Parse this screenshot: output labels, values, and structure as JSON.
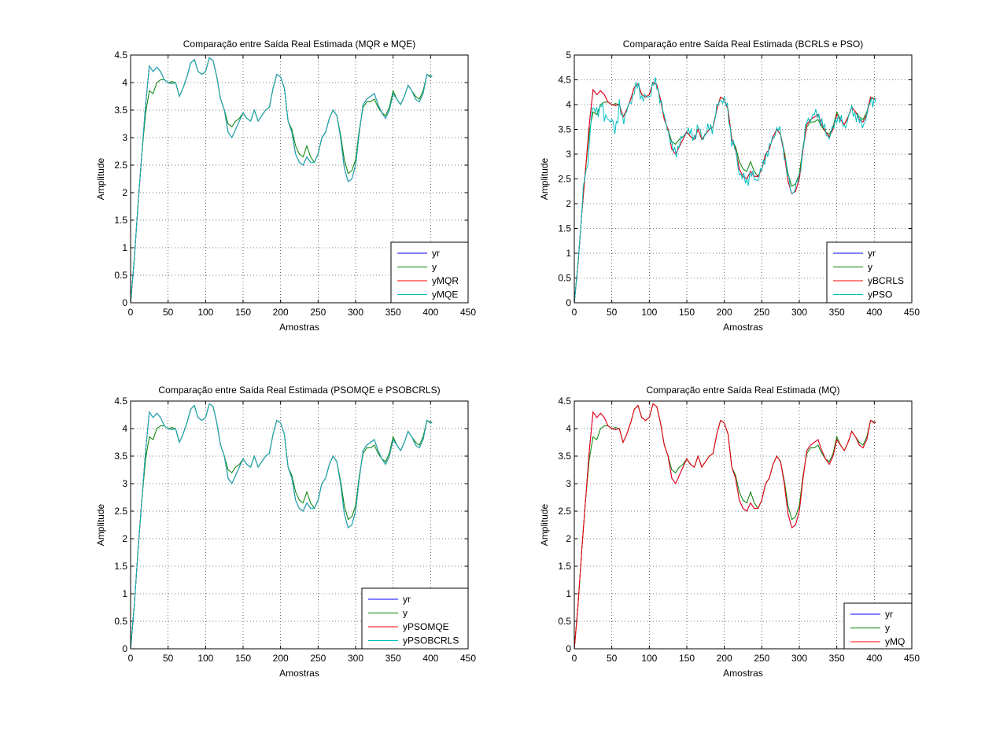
{
  "figure": {
    "background": "#ffffff"
  },
  "chart_data": [
    {
      "id": "mqr-mqe",
      "type": "line",
      "title": "Comparação entre Saída Real Estimada (MQR e MQE)",
      "xlabel": "Amostras",
      "ylabel": "Amplitude",
      "xlim": [
        0,
        450
      ],
      "ylim": [
        0,
        4.5
      ],
      "xticks": [
        "0",
        "50",
        "100",
        "150",
        "200",
        "250",
        "300",
        "350",
        "400",
        "450"
      ],
      "yticks": [
        "0",
        "0.5",
        "1",
        "1.5",
        "2",
        "2.5",
        "3",
        "3.5",
        "4",
        "4.5"
      ],
      "grid": true,
      "legend_location": "lower-right",
      "series": [
        {
          "name": "yr",
          "color": "#0000ff",
          "profile": "ref"
        },
        {
          "name": "y",
          "color": "#008000",
          "profile": "meas"
        },
        {
          "name": "yMQR",
          "color": "#ff0000",
          "profile": "ref"
        },
        {
          "name": "yMQE",
          "color": "#00bfbf",
          "profile": "ref"
        }
      ]
    },
    {
      "id": "bcrls-pso",
      "type": "line",
      "title": "Comparação entre Saída Real Estimada (BCRLS e PSO)",
      "xlabel": "Amostras",
      "ylabel": "Amplitude",
      "xlim": [
        0,
        450
      ],
      "ylim": [
        0,
        5
      ],
      "xticks": [
        "0",
        "50",
        "100",
        "150",
        "200",
        "250",
        "300",
        "350",
        "400",
        "450"
      ],
      "yticks": [
        "0",
        "0.5",
        "1",
        "1.5",
        "2",
        "2.5",
        "3",
        "3.5",
        "4",
        "4.5",
        "5"
      ],
      "grid": true,
      "legend_location": "lower-right",
      "series": [
        {
          "name": "yr",
          "color": "#0000ff",
          "profile": "ref"
        },
        {
          "name": "y",
          "color": "#008000",
          "profile": "meas"
        },
        {
          "name": "yBCRLS",
          "color": "#ff0000",
          "profile": "ref"
        },
        {
          "name": "yPSO",
          "color": "#00bfbf",
          "profile": "noisy"
        }
      ]
    },
    {
      "id": "psomqe-psobcrls",
      "type": "line",
      "title": "Comparação entre Saída Real Estimada (PSOMQE e PSOBCRLS)",
      "xlabel": "Amostras",
      "ylabel": "Amplitude",
      "xlim": [
        0,
        450
      ],
      "ylim": [
        0,
        4.5
      ],
      "xticks": [
        "0",
        "50",
        "100",
        "150",
        "200",
        "250",
        "300",
        "350",
        "400",
        "450"
      ],
      "yticks": [
        "0",
        "0.5",
        "1",
        "1.5",
        "2",
        "2.5",
        "3",
        "3.5",
        "4",
        "4.5"
      ],
      "grid": true,
      "legend_location": "lower-right",
      "series": [
        {
          "name": "yr",
          "color": "#0000ff",
          "profile": "ref"
        },
        {
          "name": "y",
          "color": "#008000",
          "profile": "meas"
        },
        {
          "name": "yPSOMQE",
          "color": "#ff0000",
          "profile": "ref"
        },
        {
          "name": "yPSOBCRLS",
          "color": "#00bfbf",
          "profile": "ref"
        }
      ]
    },
    {
      "id": "mq",
      "type": "line",
      "title": "Comparação entre Saída Real Estimada (MQ)",
      "xlabel": "Amostras",
      "ylabel": "Amplitude",
      "xlim": [
        0,
        450
      ],
      "ylim": [
        0,
        4.5
      ],
      "xticks": [
        "0",
        "50",
        "100",
        "150",
        "200",
        "250",
        "300",
        "350",
        "400",
        "450"
      ],
      "yticks": [
        "0",
        "0.5",
        "1",
        "1.5",
        "2",
        "2.5",
        "3",
        "3.5",
        "4",
        "4.5"
      ],
      "grid": true,
      "legend_location": "lower-right",
      "series": [
        {
          "name": "yr",
          "color": "#0000ff",
          "profile": "ref"
        },
        {
          "name": "y",
          "color": "#008000",
          "profile": "meas"
        },
        {
          "name": "yMQ",
          "color": "#ff0000",
          "profile": "ref"
        }
      ]
    }
  ],
  "profiles": {
    "ref": [
      [
        0,
        0
      ],
      [
        5,
        0.8
      ],
      [
        10,
        1.8
      ],
      [
        15,
        2.7
      ],
      [
        20,
        3.6
      ],
      [
        25,
        4.3
      ],
      [
        30,
        4.2
      ],
      [
        35,
        4.28
      ],
      [
        40,
        4.2
      ],
      [
        45,
        4.05
      ],
      [
        50,
        4.0
      ],
      [
        55,
        3.98
      ],
      [
        60,
        4.0
      ],
      [
        65,
        3.75
      ],
      [
        70,
        3.9
      ],
      [
        75,
        4.1
      ],
      [
        80,
        4.35
      ],
      [
        85,
        4.42
      ],
      [
        90,
        4.2
      ],
      [
        95,
        4.15
      ],
      [
        100,
        4.2
      ],
      [
        105,
        4.45
      ],
      [
        110,
        4.4
      ],
      [
        115,
        4.1
      ],
      [
        120,
        3.7
      ],
      [
        125,
        3.5
      ],
      [
        130,
        3.1
      ],
      [
        135,
        3.0
      ],
      [
        140,
        3.15
      ],
      [
        145,
        3.3
      ],
      [
        150,
        3.45
      ],
      [
        155,
        3.35
      ],
      [
        160,
        3.3
      ],
      [
        165,
        3.5
      ],
      [
        170,
        3.3
      ],
      [
        175,
        3.4
      ],
      [
        180,
        3.5
      ],
      [
        185,
        3.55
      ],
      [
        190,
        3.9
      ],
      [
        195,
        4.15
      ],
      [
        200,
        4.1
      ],
      [
        205,
        3.9
      ],
      [
        210,
        3.3
      ],
      [
        215,
        3.1
      ],
      [
        220,
        2.7
      ],
      [
        225,
        2.55
      ],
      [
        230,
        2.5
      ],
      [
        235,
        2.65
      ],
      [
        240,
        2.55
      ],
      [
        245,
        2.55
      ],
      [
        250,
        2.7
      ],
      [
        255,
        3.0
      ],
      [
        260,
        3.1
      ],
      [
        265,
        3.35
      ],
      [
        270,
        3.5
      ],
      [
        275,
        3.4
      ],
      [
        280,
        3.0
      ],
      [
        285,
        2.45
      ],
      [
        290,
        2.2
      ],
      [
        295,
        2.25
      ],
      [
        300,
        2.5
      ],
      [
        305,
        3.1
      ],
      [
        310,
        3.6
      ],
      [
        315,
        3.7
      ],
      [
        320,
        3.75
      ],
      [
        325,
        3.8
      ],
      [
        330,
        3.6
      ],
      [
        335,
        3.45
      ],
      [
        340,
        3.35
      ],
      [
        345,
        3.5
      ],
      [
        350,
        3.8
      ],
      [
        355,
        3.7
      ],
      [
        360,
        3.6
      ],
      [
        365,
        3.75
      ],
      [
        370,
        3.95
      ],
      [
        375,
        3.85
      ],
      [
        380,
        3.7
      ],
      [
        385,
        3.65
      ],
      [
        390,
        3.8
      ],
      [
        395,
        4.15
      ],
      [
        400,
        4.1
      ],
      [
        402,
        4.12
      ]
    ],
    "meas": [
      [
        0,
        0
      ],
      [
        5,
        0.8
      ],
      [
        10,
        1.8
      ],
      [
        15,
        2.7
      ],
      [
        20,
        3.45
      ],
      [
        25,
        3.85
      ],
      [
        30,
        3.8
      ],
      [
        35,
        4.0
      ],
      [
        40,
        4.05
      ],
      [
        45,
        4.05
      ],
      [
        50,
        4.0
      ],
      [
        55,
        4.02
      ],
      [
        60,
        4.0
      ],
      [
        65,
        3.75
      ],
      [
        70,
        3.9
      ],
      [
        75,
        4.1
      ],
      [
        80,
        4.35
      ],
      [
        85,
        4.42
      ],
      [
        90,
        4.2
      ],
      [
        95,
        4.15
      ],
      [
        100,
        4.2
      ],
      [
        105,
        4.45
      ],
      [
        110,
        4.4
      ],
      [
        115,
        4.1
      ],
      [
        120,
        3.7
      ],
      [
        125,
        3.5
      ],
      [
        130,
        3.25
      ],
      [
        135,
        3.2
      ],
      [
        140,
        3.3
      ],
      [
        145,
        3.35
      ],
      [
        150,
        3.45
      ],
      [
        155,
        3.35
      ],
      [
        160,
        3.3
      ],
      [
        165,
        3.5
      ],
      [
        170,
        3.3
      ],
      [
        175,
        3.4
      ],
      [
        180,
        3.5
      ],
      [
        185,
        3.55
      ],
      [
        190,
        3.9
      ],
      [
        195,
        4.15
      ],
      [
        200,
        4.1
      ],
      [
        205,
        3.9
      ],
      [
        210,
        3.3
      ],
      [
        215,
        3.15
      ],
      [
        220,
        2.85
      ],
      [
        225,
        2.7
      ],
      [
        230,
        2.65
      ],
      [
        235,
        2.85
      ],
      [
        240,
        2.65
      ],
      [
        245,
        2.55
      ],
      [
        250,
        2.7
      ],
      [
        255,
        3.0
      ],
      [
        260,
        3.1
      ],
      [
        265,
        3.35
      ],
      [
        270,
        3.5
      ],
      [
        275,
        3.4
      ],
      [
        280,
        3.05
      ],
      [
        285,
        2.6
      ],
      [
        290,
        2.35
      ],
      [
        295,
        2.4
      ],
      [
        300,
        2.6
      ],
      [
        305,
        3.15
      ],
      [
        310,
        3.55
      ],
      [
        315,
        3.65
      ],
      [
        320,
        3.65
      ],
      [
        325,
        3.7
      ],
      [
        330,
        3.55
      ],
      [
        335,
        3.45
      ],
      [
        340,
        3.4
      ],
      [
        345,
        3.55
      ],
      [
        350,
        3.85
      ],
      [
        355,
        3.7
      ],
      [
        360,
        3.6
      ],
      [
        365,
        3.75
      ],
      [
        370,
        3.95
      ],
      [
        375,
        3.85
      ],
      [
        380,
        3.75
      ],
      [
        385,
        3.7
      ],
      [
        390,
        3.85
      ],
      [
        395,
        4.15
      ],
      [
        400,
        4.12
      ],
      [
        402,
        4.12
      ]
    ]
  }
}
